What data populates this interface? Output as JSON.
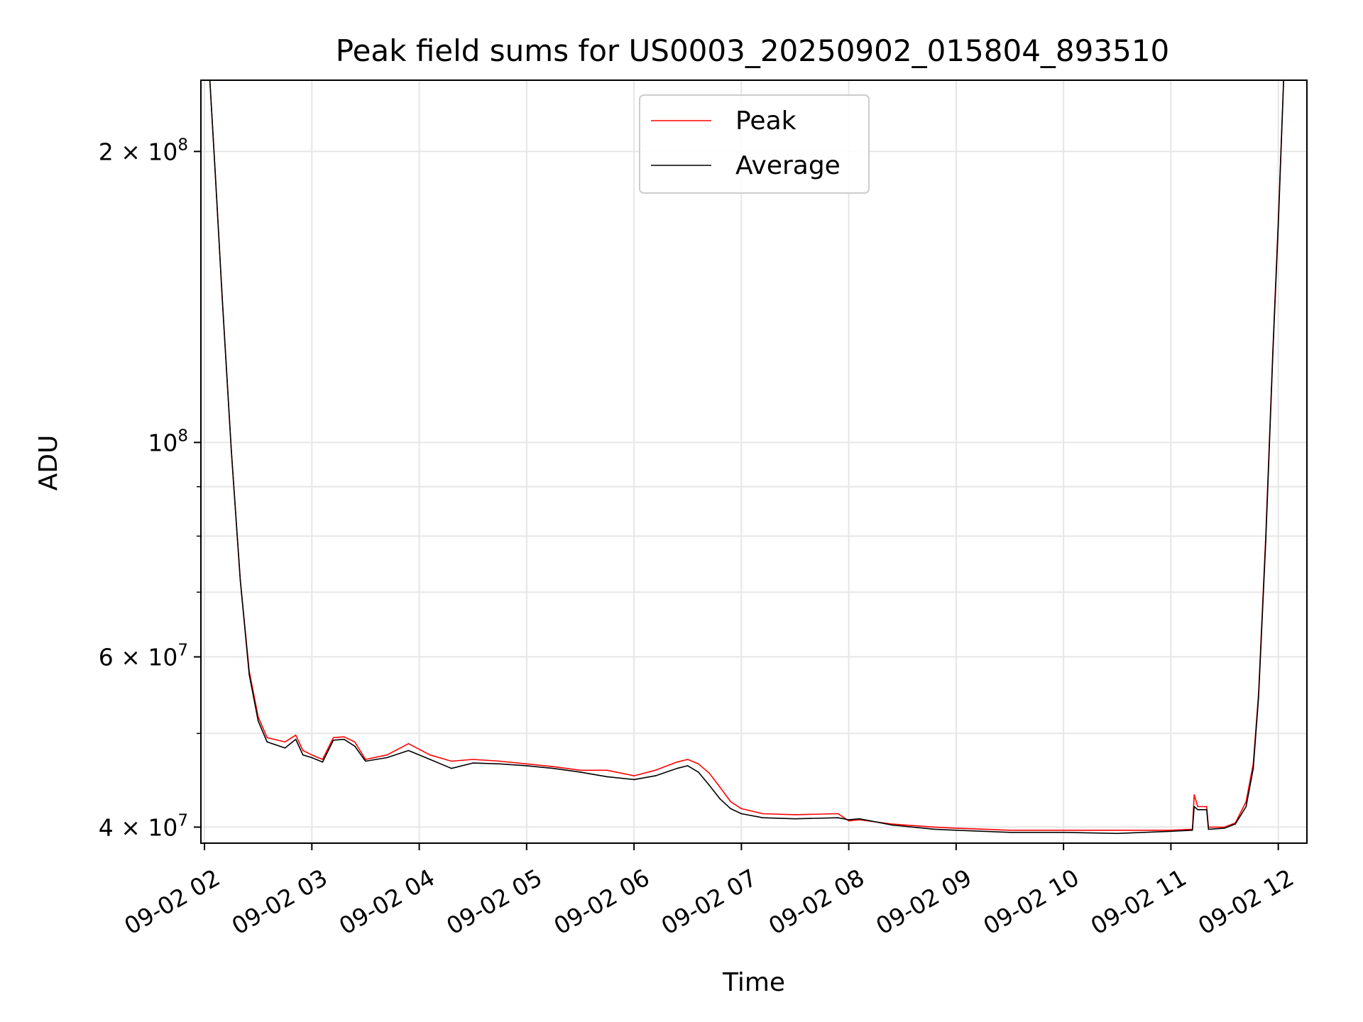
{
  "chart_data": {
    "type": "line",
    "title": "Peak field sums for US0003_20250902_015804_893510",
    "xlabel": "Time",
    "ylabel": "ADU",
    "y_scale": "log",
    "ylim": [
      38500000,
      237000000
    ],
    "xlim": [
      "2025-09-02 01:58",
      "2025-09-02 12:16"
    ],
    "grid": true,
    "legend_position": "upper center",
    "x_ticks": [
      {
        "t": "2025-09-02 02:00",
        "label": "09-02 02"
      },
      {
        "t": "2025-09-02 03:00",
        "label": "09-02 03"
      },
      {
        "t": "2025-09-02 04:00",
        "label": "09-02 04"
      },
      {
        "t": "2025-09-02 05:00",
        "label": "09-02 05"
      },
      {
        "t": "2025-09-02 06:00",
        "label": "09-02 06"
      },
      {
        "t": "2025-09-02 07:00",
        "label": "09-02 07"
      },
      {
        "t": "2025-09-02 08:00",
        "label": "09-02 08"
      },
      {
        "t": "2025-09-02 09:00",
        "label": "09-02 09"
      },
      {
        "t": "2025-09-02 10:00",
        "label": "09-02 10"
      },
      {
        "t": "2025-09-02 11:00",
        "label": "09-02 11"
      },
      {
        "t": "2025-09-02 12:00",
        "label": "09-02 12"
      }
    ],
    "y_ticks_major": [
      {
        "v": 40000000,
        "mant": "4",
        "exp": "7"
      },
      {
        "v": 60000000,
        "mant": "6",
        "exp": "7"
      },
      {
        "v": 100000000,
        "mant": "",
        "exp": "8"
      },
      {
        "v": 200000000,
        "mant": "2",
        "exp": "8"
      }
    ],
    "y_ticks_minor": [
      50000000,
      70000000,
      80000000,
      90000000
    ],
    "series": [
      {
        "name": "Peak",
        "color": "#ff0000",
        "points": [
          [
            "2025-09-02 02:03",
            237000000
          ],
          [
            "2025-09-02 02:06",
            190000000
          ],
          [
            "2025-09-02 02:10",
            140000000
          ],
          [
            "2025-09-02 02:15",
            98000000
          ],
          [
            "2025-09-02 02:20",
            72000000
          ],
          [
            "2025-09-02 02:25",
            58000000
          ],
          [
            "2025-09-02 02:30",
            52000000
          ],
          [
            "2025-09-02 02:35",
            49500000
          ],
          [
            "2025-09-02 02:45",
            49000000
          ],
          [
            "2025-09-02 02:51",
            49800000
          ],
          [
            "2025-09-02 02:55",
            48000000
          ],
          [
            "2025-09-02 03:00",
            47500000
          ],
          [
            "2025-09-02 03:06",
            47000000
          ],
          [
            "2025-09-02 03:12",
            49500000
          ],
          [
            "2025-09-02 03:18",
            49600000
          ],
          [
            "2025-09-02 03:24",
            49000000
          ],
          [
            "2025-09-02 03:30",
            47000000
          ],
          [
            "2025-09-02 03:42",
            47500000
          ],
          [
            "2025-09-02 03:54",
            48800000
          ],
          [
            "2025-09-02 04:06",
            47500000
          ],
          [
            "2025-09-02 04:18",
            46800000
          ],
          [
            "2025-09-02 04:30",
            47000000
          ],
          [
            "2025-09-02 04:45",
            46800000
          ],
          [
            "2025-09-02 05:00",
            46500000
          ],
          [
            "2025-09-02 05:15",
            46200000
          ],
          [
            "2025-09-02 05:30",
            45800000
          ],
          [
            "2025-09-02 05:45",
            45800000
          ],
          [
            "2025-09-02 06:00",
            45200000
          ],
          [
            "2025-09-02 06:12",
            45800000
          ],
          [
            "2025-09-02 06:24",
            46700000
          ],
          [
            "2025-09-02 06:30",
            47000000
          ],
          [
            "2025-09-02 06:36",
            46500000
          ],
          [
            "2025-09-02 06:42",
            45500000
          ],
          [
            "2025-09-02 06:48",
            44000000
          ],
          [
            "2025-09-02 06:54",
            42500000
          ],
          [
            "2025-09-02 07:00",
            41800000
          ],
          [
            "2025-09-02 07:12",
            41300000
          ],
          [
            "2025-09-02 07:30",
            41200000
          ],
          [
            "2025-09-02 07:54",
            41300000
          ],
          [
            "2025-09-02 08:00",
            40600000
          ],
          [
            "2025-09-02 08:06",
            40700000
          ],
          [
            "2025-09-02 08:24",
            40300000
          ],
          [
            "2025-09-02 08:48",
            40000000
          ],
          [
            "2025-09-02 09:00",
            39900000
          ],
          [
            "2025-09-02 09:30",
            39700000
          ],
          [
            "2025-09-02 10:00",
            39700000
          ],
          [
            "2025-09-02 10:30",
            39700000
          ],
          [
            "2025-09-02 11:00",
            39700000
          ],
          [
            "2025-09-02 11:12",
            39800000
          ],
          [
            "2025-09-02 11:13",
            43200000
          ],
          [
            "2025-09-02 11:15",
            42000000
          ],
          [
            "2025-09-02 11:20",
            42000000
          ],
          [
            "2025-09-02 11:21",
            40000000
          ],
          [
            "2025-09-02 11:30",
            40000000
          ],
          [
            "2025-09-02 11:36",
            40400000
          ],
          [
            "2025-09-02 11:42",
            42500000
          ],
          [
            "2025-09-02 11:46",
            46500000
          ],
          [
            "2025-09-02 11:49",
            55000000
          ],
          [
            "2025-09-02 11:53",
            80000000
          ],
          [
            "2025-09-02 11:57",
            125000000
          ],
          [
            "2025-09-02 12:00",
            170000000
          ],
          [
            "2025-09-02 12:03",
            237000000
          ]
        ]
      },
      {
        "name": "Average",
        "color": "#000000",
        "points": [
          [
            "2025-09-02 02:03",
            237000000
          ],
          [
            "2025-09-02 02:06",
            190000000
          ],
          [
            "2025-09-02 02:10",
            140000000
          ],
          [
            "2025-09-02 02:15",
            98000000
          ],
          [
            "2025-09-02 02:20",
            72000000
          ],
          [
            "2025-09-02 02:25",
            57500000
          ],
          [
            "2025-09-02 02:30",
            51500000
          ],
          [
            "2025-09-02 02:35",
            49000000
          ],
          [
            "2025-09-02 02:45",
            48300000
          ],
          [
            "2025-09-02 02:51",
            49300000
          ],
          [
            "2025-09-02 02:55",
            47500000
          ],
          [
            "2025-09-02 03:00",
            47200000
          ],
          [
            "2025-09-02 03:06",
            46700000
          ],
          [
            "2025-09-02 03:12",
            49200000
          ],
          [
            "2025-09-02 03:18",
            49300000
          ],
          [
            "2025-09-02 03:24",
            48500000
          ],
          [
            "2025-09-02 03:30",
            46800000
          ],
          [
            "2025-09-02 03:42",
            47200000
          ],
          [
            "2025-09-02 03:54",
            48000000
          ],
          [
            "2025-09-02 04:06",
            47000000
          ],
          [
            "2025-09-02 04:18",
            46000000
          ],
          [
            "2025-09-02 04:30",
            46600000
          ],
          [
            "2025-09-02 04:45",
            46500000
          ],
          [
            "2025-09-02 05:00",
            46300000
          ],
          [
            "2025-09-02 05:15",
            46000000
          ],
          [
            "2025-09-02 05:30",
            45600000
          ],
          [
            "2025-09-02 05:45",
            45100000
          ],
          [
            "2025-09-02 06:00",
            44800000
          ],
          [
            "2025-09-02 06:12",
            45200000
          ],
          [
            "2025-09-02 06:24",
            46000000
          ],
          [
            "2025-09-02 06:30",
            46300000
          ],
          [
            "2025-09-02 06:36",
            45600000
          ],
          [
            "2025-09-02 06:42",
            44200000
          ],
          [
            "2025-09-02 06:48",
            42800000
          ],
          [
            "2025-09-02 06:54",
            41800000
          ],
          [
            "2025-09-02 07:00",
            41300000
          ],
          [
            "2025-09-02 07:12",
            40900000
          ],
          [
            "2025-09-02 07:30",
            40800000
          ],
          [
            "2025-09-02 07:54",
            40900000
          ],
          [
            "2025-09-02 08:00",
            40700000
          ],
          [
            "2025-09-02 08:06",
            40800000
          ],
          [
            "2025-09-02 08:24",
            40200000
          ],
          [
            "2025-09-02 08:48",
            39800000
          ],
          [
            "2025-09-02 09:00",
            39700000
          ],
          [
            "2025-09-02 09:30",
            39500000
          ],
          [
            "2025-09-02 10:00",
            39500000
          ],
          [
            "2025-09-02 10:30",
            39400000
          ],
          [
            "2025-09-02 11:00",
            39600000
          ],
          [
            "2025-09-02 11:12",
            39700000
          ],
          [
            "2025-09-02 11:13",
            42000000
          ],
          [
            "2025-09-02 11:15",
            41700000
          ],
          [
            "2025-09-02 11:20",
            41700000
          ],
          [
            "2025-09-02 11:21",
            39800000
          ],
          [
            "2025-09-02 11:30",
            39900000
          ],
          [
            "2025-09-02 11:36",
            40300000
          ],
          [
            "2025-09-02 11:42",
            42000000
          ],
          [
            "2025-09-02 11:46",
            46000000
          ],
          [
            "2025-09-02 11:49",
            54500000
          ],
          [
            "2025-09-02 11:53",
            79000000
          ],
          [
            "2025-09-02 11:57",
            124000000
          ],
          [
            "2025-09-02 12:00",
            168000000
          ],
          [
            "2025-09-02 12:03",
            237000000
          ]
        ]
      }
    ]
  }
}
